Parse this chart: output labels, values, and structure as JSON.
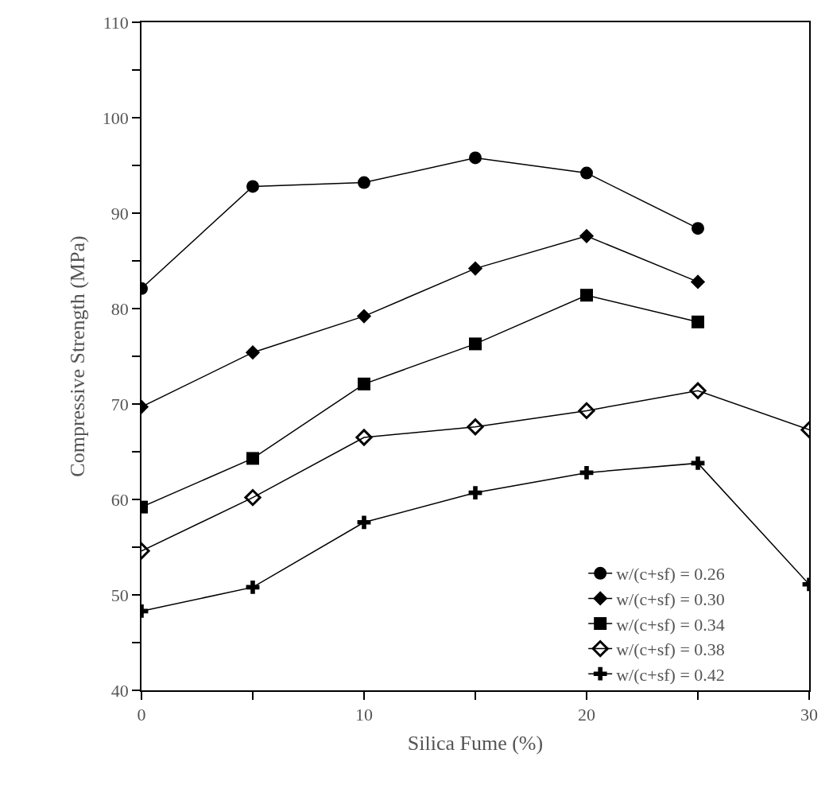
{
  "chart_data": {
    "type": "line",
    "xlabel": "Silica Fume (%)",
    "ylabel": "Compressive Strength (MPa)",
    "xlim": [
      0,
      30
    ],
    "ylim": [
      40,
      110
    ],
    "xticks": [
      0,
      {
        "value": 5,
        "label": null
      },
      10,
      {
        "value": 15,
        "label": null
      },
      20,
      {
        "value": 25,
        "label": null
      },
      30
    ],
    "yticks": [
      40,
      {
        "value": 45,
        "label": null
      },
      50,
      {
        "value": 55,
        "label": null
      },
      60,
      {
        "value": 65,
        "label": null
      },
      70,
      {
        "value": 75,
        "label": null
      },
      80,
      {
        "value": 85,
        "label": null
      },
      90,
      {
        "value": 95,
        "label": null
      },
      100,
      {
        "value": 105,
        "label": null
      },
      110
    ],
    "legend": "bottom right",
    "line_style": "solid",
    "series": [
      {
        "name": "w/(c+sf) = 0.26",
        "color": "#000000",
        "marker": "circle",
        "x": [
          0,
          5,
          10,
          15,
          20,
          25
        ],
        "values": [
          82.1,
          92.8,
          93.2,
          95.8,
          94.2,
          88.4
        ]
      },
      {
        "name": "w/(c+sf) = 0.30",
        "color": "#000000",
        "marker": "diamond",
        "x": [
          0,
          5,
          10,
          15,
          20,
          25
        ],
        "values": [
          69.7,
          75.4,
          79.2,
          84.2,
          87.6,
          82.8
        ]
      },
      {
        "name": "w/(c+sf) = 0.34",
        "color": "#000000",
        "marker": "square",
        "x": [
          0,
          5,
          10,
          15,
          20,
          25
        ],
        "values": [
          59.2,
          64.3,
          72.1,
          76.3,
          81.4,
          78.6
        ]
      },
      {
        "name": "w/(c+sf) = 0.38",
        "color": "#000000",
        "marker": "diamond",
        "x": [
          0,
          5,
          10,
          15,
          20,
          25,
          30
        ],
        "values": [
          54.6,
          60.2,
          66.5,
          67.6,
          69.3,
          71.4,
          67.3
        ]
      },
      {
        "name": "w/(c+sf) = 0.42",
        "color": "#000000",
        "marker": "cross",
        "x": [
          0,
          5,
          10,
          15,
          20,
          25,
          30
        ],
        "values": [
          48.3,
          50.8,
          57.6,
          60.7,
          62.8,
          63.8,
          51.1
        ]
      }
    ]
  }
}
